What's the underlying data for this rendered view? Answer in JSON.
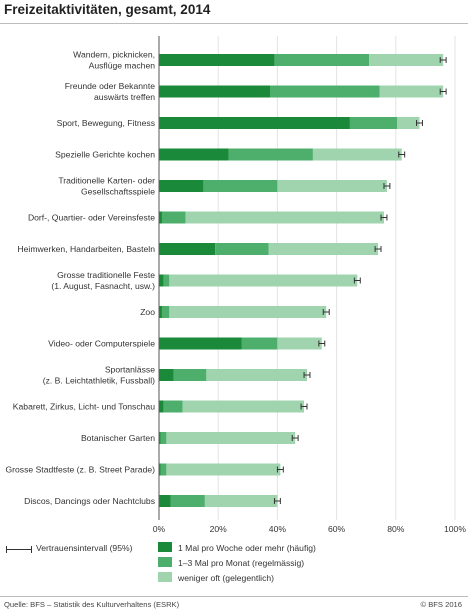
{
  "title": "Freizeitaktivitäten, gesamt, 2014",
  "legend": {
    "ci_label": "Vertrauensintervall (95%)",
    "items": [
      {
        "label": "1 Mal pro Woche oder mehr (häufig)",
        "color": "#1a8a3a"
      },
      {
        "label": "1–3 Mal pro Monat (regelmässig)",
        "color": "#4eaf6c"
      },
      {
        "label": "weniger oft (gelegentlich)",
        "color": "#9fd4ae"
      }
    ]
  },
  "footer": {
    "source": "Quelle: BFS – Statistik des Kulturverhaltens (ESRK)",
    "copyright": "© BFS 2016"
  },
  "chart_data": {
    "type": "bar",
    "orientation": "horizontal",
    "stacked": true,
    "title": "Freizeitaktivitäten, gesamt, 2014",
    "xlim": [
      0,
      100
    ],
    "x_ticks": [
      "0%",
      "20%",
      "40%",
      "60%",
      "80%",
      "100%"
    ],
    "grid": true,
    "categories": [
      [
        "Wandern, picknicken,",
        "Ausflüge machen"
      ],
      [
        "Freunde oder Bekannte",
        "auswärts treffen"
      ],
      [
        "Sport, Bewegung, Fitness"
      ],
      [
        "Spezielle Gerichte kochen"
      ],
      [
        "Traditionelle Karten- oder",
        "Gesellschaftsspiele"
      ],
      [
        "Dorf-, Quartier- oder Vereinsfeste"
      ],
      [
        "Heimwerken, Handarbeiten, Basteln"
      ],
      [
        "Grosse traditionelle Feste",
        "(1. August, Fasnacht, usw.)"
      ],
      [
        "Zoo"
      ],
      [
        "Video- oder Computerspiele"
      ],
      [
        "Sportanlässe",
        "(z. B. Leichtathletik, Fussball)"
      ],
      [
        "Kabarett, Zirkus, Licht- und Tonschau"
      ],
      [
        "Botanischer Garten"
      ],
      [
        "Grosse Stadtfeste (z. B. Street Parade)"
      ],
      [
        "Discos, Dancings oder Nachtclubs"
      ]
    ],
    "series": [
      {
        "name": "1 Mal pro Woche oder mehr (häufig)",
        "color": "#1a8a3a",
        "values": [
          39,
          37.5,
          64.5,
          23.5,
          15,
          1,
          19,
          1.5,
          1,
          28,
          5,
          1.5,
          0.5,
          0.5,
          4
        ]
      },
      {
        "name": "1–3 Mal pro Monat (regelmässig)",
        "color": "#4eaf6c",
        "values": [
          32,
          37,
          16,
          28.5,
          25,
          8,
          18,
          2,
          2.5,
          12,
          11,
          6.5,
          2,
          2,
          11.5
        ]
      },
      {
        "name": "weniger oft (gelegentlich)",
        "color": "#9fd4ae",
        "values": [
          25,
          21.5,
          7.5,
          30,
          37,
          67,
          37,
          63.5,
          53,
          15,
          34,
          41,
          43.5,
          38.5,
          24.5
        ]
      }
    ],
    "error_margin": 1
  }
}
